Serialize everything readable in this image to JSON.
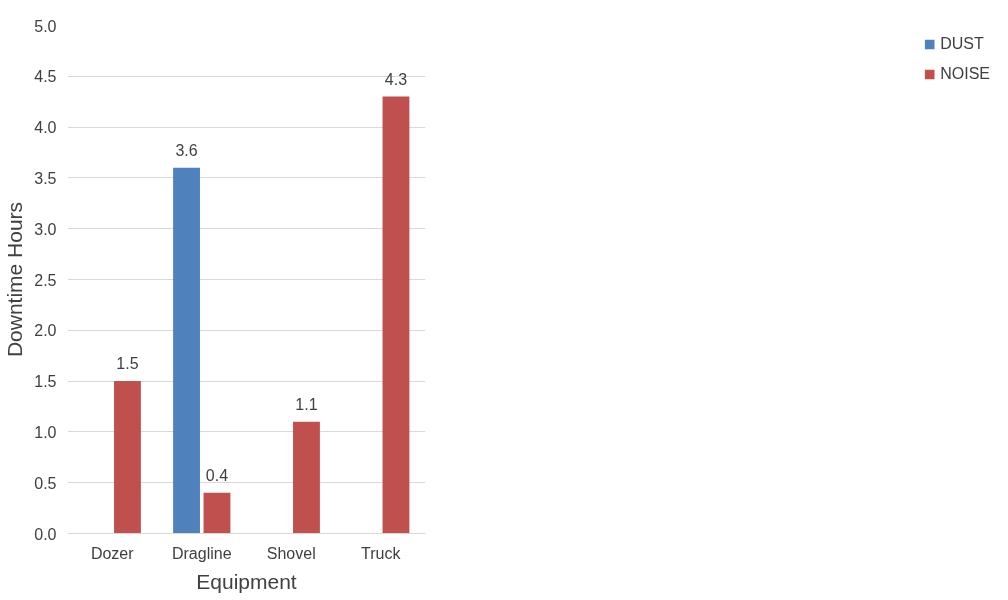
{
  "chart_data": {
    "type": "bar",
    "xlabel": "Equipment",
    "ylabel": "Downtime Hours",
    "categories": [
      "Dozer",
      "Dragline",
      "Shovel",
      "Truck"
    ],
    "series": [
      {
        "name": "DUST",
        "color": "#4f81bd",
        "values": [
          null,
          3.6,
          null,
          null
        ]
      },
      {
        "name": "NOISE",
        "color": "#c0504d",
        "values": [
          1.5,
          0.4,
          1.1,
          4.3
        ]
      }
    ],
    "ylim": [
      0,
      5
    ],
    "yticks": [
      {
        "value": 0,
        "label": "0.0"
      },
      {
        "value": 0.5,
        "label": "0.5"
      },
      {
        "value": 1,
        "label": "1.0"
      },
      {
        "value": 1.5,
        "label": "1.5"
      },
      {
        "value": 2,
        "label": "2.0"
      },
      {
        "value": 2.5,
        "label": "2.5"
      },
      {
        "value": 3,
        "label": "3.0"
      },
      {
        "value": 3.5,
        "label": "3.5"
      },
      {
        "value": 4,
        "label": "4.0"
      },
      {
        "value": 4.5,
        "label": "4.5"
      },
      {
        "value": 5,
        "label": "5.0"
      }
    ],
    "grid": "y",
    "legend": "right",
    "data_labels": true
  }
}
